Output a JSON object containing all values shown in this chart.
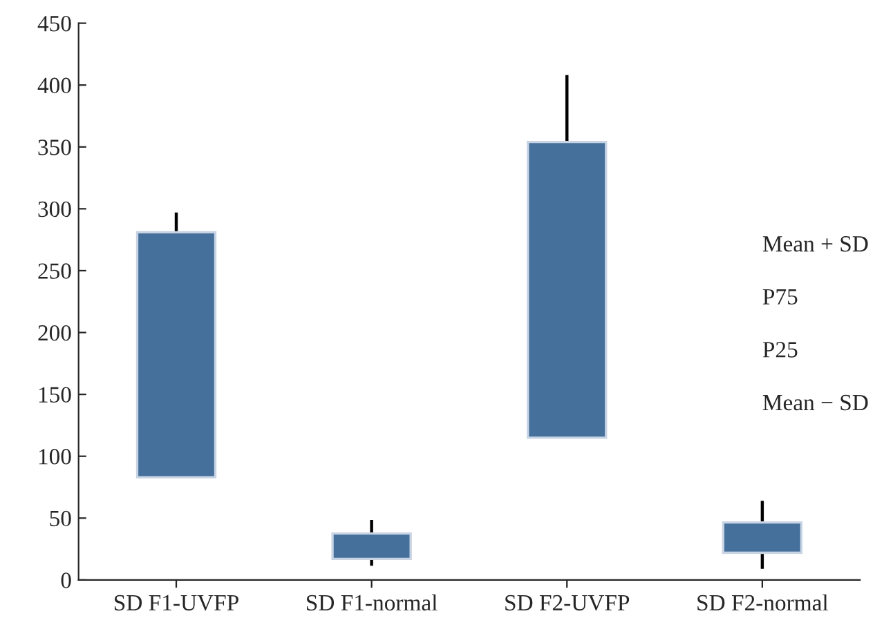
{
  "chart_data": {
    "type": "bar",
    "categories": [
      "SD F1-UVFP",
      "SD F1-normal",
      "SD F2-UVFP",
      "SD F2-normal"
    ],
    "base": [
      83,
      17,
      115,
      22
    ],
    "values": [
      198,
      20.5,
      239,
      24.5
    ],
    "errors": [
      [
        83,
        297
      ],
      [
        11.5,
        48.5
      ],
      [
        117,
        408
      ],
      [
        9,
        64
      ]
    ],
    "color": "#46709c",
    "ylim": [
      0,
      450
    ],
    "yticks": [
      0,
      50,
      100,
      150,
      200,
      250,
      300,
      350,
      400,
      450
    ],
    "annotations": [
      "Mean + SD",
      "P75",
      "P25",
      "Mean − SD"
    ],
    "grid": false,
    "legend": false
  }
}
